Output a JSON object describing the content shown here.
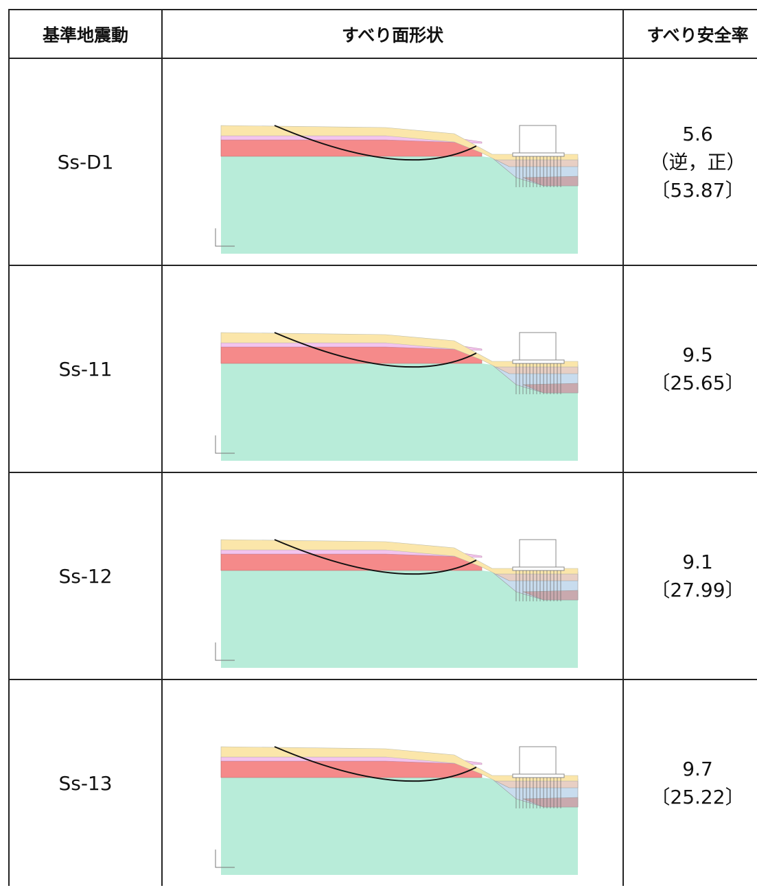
{
  "table": {
    "header": [
      "基準地震動",
      "すべり面形状",
      "すべり安全率"
    ],
    "rows": [
      {
        "motion": "Ss-D1",
        "safety_factor": [
          "5.6",
          "（逆，正）",
          "〔53.87〕"
        ]
      },
      {
        "motion": "Ss-11",
        "safety_factor": [
          "9.5",
          "〔25.65〕"
        ]
      },
      {
        "motion": "Ss-12",
        "safety_factor": [
          "9.1",
          "〔27.99〕"
        ]
      },
      {
        "motion": "Ss-13",
        "safety_factor": [
          "9.7",
          "〔25.22〕"
        ]
      }
    ]
  }
}
